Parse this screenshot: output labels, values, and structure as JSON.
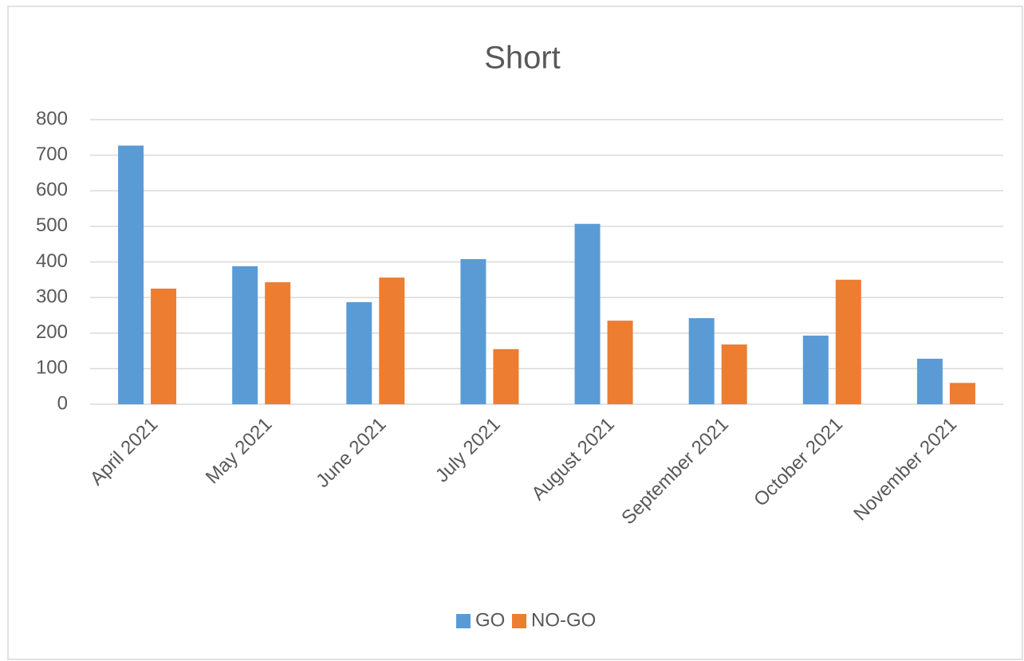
{
  "chart_data": {
    "type": "bar",
    "title": "Short",
    "categories": [
      "April 2021",
      "May 2021",
      "June 2021",
      "July 2021",
      "August 2021",
      "September 2021",
      "October 2021",
      "November 2021"
    ],
    "series": [
      {
        "name": "GO",
        "color": "#5b9bd5",
        "values": [
          727,
          388,
          287,
          408,
          507,
          242,
          193,
          128
        ]
      },
      {
        "name": "NO-GO",
        "color": "#ed7d31",
        "values": [
          325,
          343,
          356,
          155,
          235,
          168,
          350,
          60
        ]
      }
    ],
    "ylim": [
      0,
      800
    ],
    "yticks": [
      0,
      100,
      200,
      300,
      400,
      500,
      600,
      700,
      800
    ],
    "grid": true,
    "legend": "bottom"
  }
}
